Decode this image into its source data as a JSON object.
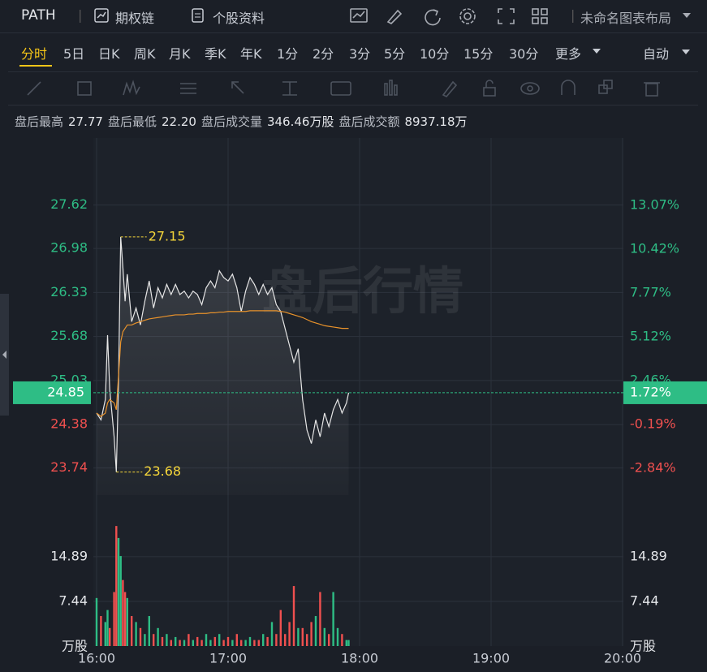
{
  "header": {
    "symbol": "PATH",
    "links": [
      "期权链",
      "个股资料"
    ],
    "layout_name": "未命名图表布局"
  },
  "tabs": {
    "items": [
      "分时",
      "5日",
      "日K",
      "周K",
      "月K",
      "季K",
      "年K",
      "1分",
      "2分",
      "3分",
      "5分",
      "10分",
      "15分",
      "30分"
    ],
    "active": 0,
    "more": "更多",
    "mode": "自动"
  },
  "info": [
    {
      "label": "盘后最高",
      "value": "27.77"
    },
    {
      "label": "盘后最低",
      "value": "22.20"
    },
    {
      "label": "盘后成交量",
      "value": "346.46万股"
    },
    {
      "label": "盘后成交额",
      "value": "8937.18万"
    }
  ],
  "chart_data": [
    {
      "type": "line",
      "watermark": "盘后行情",
      "x": [
        "16:00",
        "16:02",
        "16:04",
        "16:05",
        "16:06",
        "16:08",
        "16:09",
        "16:10",
        "16:11",
        "16:12",
        "16:13",
        "16:14",
        "16:16",
        "16:18",
        "16:20",
        "16:22",
        "16:24",
        "16:26",
        "16:28",
        "16:30",
        "16:32",
        "16:34",
        "16:36",
        "16:38",
        "16:40",
        "16:42",
        "16:44",
        "16:46",
        "16:48",
        "16:50",
        "16:52",
        "16:54",
        "16:56",
        "16:58",
        "17:00",
        "17:02",
        "17:04",
        "17:06",
        "17:08",
        "17:10",
        "17:12",
        "17:14",
        "17:16",
        "17:18",
        "17:20",
        "17:22",
        "17:24",
        "17:26",
        "17:28",
        "17:30",
        "17:32",
        "17:34",
        "17:36",
        "17:38",
        "17:40",
        "17:42",
        "17:44",
        "17:46",
        "17:48",
        "17:50",
        "17:52",
        "17:54",
        "17:55"
      ],
      "xlim": [
        "16:00",
        "20:00"
      ],
      "series": [
        {
          "color": "#e6e6e6",
          "values": [
            24.55,
            24.45,
            24.75,
            25.7,
            24.9,
            24.2,
            23.68,
            25.0,
            27.15,
            26.7,
            26.2,
            26.6,
            25.9,
            26.1,
            25.85,
            26.2,
            26.5,
            26.1,
            26.4,
            26.25,
            26.45,
            26.3,
            26.45,
            26.3,
            26.35,
            26.25,
            26.35,
            26.3,
            26.15,
            26.4,
            26.5,
            26.4,
            26.65,
            26.55,
            26.5,
            26.6,
            26.4,
            26.05,
            26.35,
            26.55,
            26.45,
            26.3,
            26.45,
            26.3,
            26.4,
            26.15,
            26.05,
            25.8,
            25.55,
            25.3,
            25.5,
            24.75,
            24.3,
            24.1,
            24.45,
            24.2,
            24.55,
            24.35,
            24.6,
            24.75,
            24.55,
            24.7,
            24.85
          ]
        },
        {
          "color": "#e8922b",
          "values": [
            24.55,
            24.5,
            24.55,
            24.7,
            24.75,
            24.7,
            24.6,
            25.1,
            25.6,
            25.75,
            25.8,
            25.85,
            25.85,
            25.88,
            25.9,
            25.92,
            25.94,
            25.95,
            25.96,
            25.97,
            25.98,
            25.99,
            26.0,
            26.0,
            26.0,
            26.01,
            26.01,
            26.02,
            26.02,
            26.02,
            26.03,
            26.03,
            26.04,
            26.04,
            26.05,
            26.05,
            26.05,
            26.05,
            26.05,
            26.06,
            26.06,
            26.06,
            26.06,
            26.06,
            26.06,
            26.06,
            26.05,
            26.04,
            26.02,
            26.0,
            25.98,
            25.96,
            25.93,
            25.9,
            25.88,
            25.86,
            25.84,
            25.83,
            25.82,
            25.81,
            25.8,
            25.8,
            25.8
          ]
        }
      ],
      "ylim": [
        23.34,
        28.61
      ],
      "yticks": [
        27.62,
        26.98,
        26.33,
        25.68,
        25.03,
        24.38,
        23.74
      ],
      "y2lim": [
        -4.46,
        17.15
      ],
      "y2ticks": [
        {
          "value": 13.07,
          "label": "13.07%"
        },
        {
          "value": 10.42,
          "label": "10.42%"
        },
        {
          "value": 7.77,
          "label": "7.77%"
        },
        {
          "value": 5.12,
          "label": "5.12%"
        },
        {
          "value": 2.46,
          "label": "2.46%"
        },
        {
          "value": -0.19,
          "label": "-0.19%"
        },
        {
          "value": -2.84,
          "label": "-2.84%"
        }
      ],
      "up_color": "#2ebd85",
      "down_color": "#f0504f",
      "annotations": [
        {
          "x": "16:11",
          "value": 27.15,
          "color": "#f5d63a"
        },
        {
          "x": "16:09",
          "value": 23.68,
          "color": "#f5d63a"
        }
      ],
      "last": {
        "value": 24.85,
        "change": {
          "value": 1.72,
          "label": "1.72%"
        },
        "color": "#2ebd85"
      }
    },
    {
      "type": "bar",
      "x": [
        "16:00",
        "16:02",
        "16:04",
        "16:05",
        "16:06",
        "16:08",
        "16:09",
        "16:10",
        "16:11",
        "16:12",
        "16:13",
        "16:14",
        "16:16",
        "16:18",
        "16:20",
        "16:22",
        "16:24",
        "16:26",
        "16:28",
        "16:30",
        "16:32",
        "16:34",
        "16:36",
        "16:38",
        "16:40",
        "16:42",
        "16:44",
        "16:46",
        "16:48",
        "16:50",
        "16:52",
        "16:54",
        "16:56",
        "16:58",
        "17:00",
        "17:02",
        "17:04",
        "17:06",
        "17:08",
        "17:10",
        "17:12",
        "17:14",
        "17:16",
        "17:18",
        "17:20",
        "17:22",
        "17:24",
        "17:26",
        "17:28",
        "17:30",
        "17:32",
        "17:34",
        "17:36",
        "17:38",
        "17:40",
        "17:42",
        "17:44",
        "17:46",
        "17:48",
        "17:50",
        "17:52",
        "17:54",
        "17:55"
      ],
      "values": [
        8,
        5,
        4,
        6,
        3,
        9,
        20,
        18,
        15,
        11,
        9,
        8,
        5,
        4,
        3,
        2,
        5,
        2,
        3,
        1.5,
        2,
        1,
        1.5,
        1,
        1,
        2,
        1,
        1.5,
        1,
        2,
        1,
        1.5,
        2,
        1,
        1.5,
        1,
        2,
        1,
        1,
        1.5,
        1,
        1,
        2,
        1.5,
        4,
        2,
        6,
        2,
        4,
        10,
        3,
        3,
        2,
        4,
        5,
        9,
        3,
        2,
        9,
        3,
        2,
        1,
        1
      ],
      "xlim": [
        "16:00",
        "20:00"
      ],
      "xticks": [
        "16:00",
        "17:00",
        "18:00",
        "19:00",
        "20:00"
      ],
      "ylim": [
        0,
        22.45
      ],
      "yticks": [
        14.89,
        7.44
      ],
      "unit": "万股",
      "up_color": "#2ebd85",
      "down_color": "#f0504f"
    }
  ]
}
